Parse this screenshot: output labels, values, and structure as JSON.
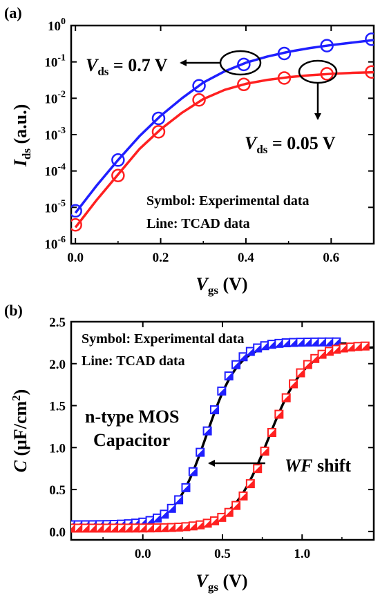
{
  "chart_data": [
    {
      "type": "scatter",
      "panel_label": "(a)",
      "xlabel": {
        "main": "V",
        "sub": "gs",
        "unit": " (V)"
      },
      "ylabel": {
        "main": "I",
        "sub": "ds",
        "unit": " (a.u.)"
      },
      "xlim": [
        -0.01,
        0.7
      ],
      "ylim_log10": [
        -6,
        0
      ],
      "yscale": "log",
      "x_ticks": [
        "0.0",
        "0.2",
        "0.4",
        "0.6"
      ],
      "y_ticks": [
        "10",
        "10",
        "10",
        "10",
        "10",
        "10",
        "10"
      ],
      "y_tick_exponents": [
        "-6",
        "-5",
        "-4",
        "-3",
        "-2",
        "-1",
        "0"
      ],
      "notes": [
        "Symbol: Experimental data",
        "Line: TCAD data"
      ],
      "annotations": [
        {
          "main": "V",
          "sub": "ds",
          "rest": " = 0.7 V"
        },
        {
          "main": "V",
          "sub": "ds",
          "rest": " = 0.05 V"
        }
      ],
      "series": [
        {
          "color": "#1f1fff",
          "symbol": "open-circle",
          "x": [
            0.0,
            0.1,
            0.195,
            0.29,
            0.395,
            0.49,
            0.59,
            0.695
          ],
          "y": [
            8e-06,
            0.0002,
            0.0028,
            0.022,
            0.085,
            0.17,
            0.28,
            0.42
          ],
          "fit_x": [
            0.0,
            0.05,
            0.1,
            0.15,
            0.2,
            0.25,
            0.3,
            0.35,
            0.4,
            0.45,
            0.5,
            0.55,
            0.6,
            0.65,
            0.7
          ],
          "fit_y": [
            7e-06,
            4e-05,
            0.0002,
            0.0009,
            0.0033,
            0.01,
            0.027,
            0.055,
            0.095,
            0.14,
            0.19,
            0.24,
            0.29,
            0.34,
            0.4
          ]
        },
        {
          "color": "#ff2020",
          "symbol": "open-circle",
          "x": [
            0.0,
            0.1,
            0.195,
            0.29,
            0.395,
            0.49,
            0.59,
            0.695
          ],
          "y": [
            3.3e-06,
            7.5e-05,
            0.0012,
            0.009,
            0.024,
            0.036,
            0.047,
            0.053
          ],
          "fit_x": [
            0.0,
            0.05,
            0.1,
            0.15,
            0.2,
            0.25,
            0.3,
            0.35,
            0.4,
            0.45,
            0.5,
            0.55,
            0.6,
            0.65,
            0.7
          ],
          "fit_y": [
            2.8e-06,
            1.6e-05,
            8e-05,
            0.0004,
            0.0014,
            0.004,
            0.0095,
            0.017,
            0.025,
            0.032,
            0.038,
            0.043,
            0.047,
            0.05,
            0.052
          ]
        }
      ]
    },
    {
      "type": "scatter",
      "panel_label": "(b)",
      "xlabel": {
        "main": "V",
        "sub": "gs",
        "unit": " (V)"
      },
      "ylabel": {
        "main": "C",
        "unit_pre": " (μF/cm",
        "sup": "2",
        "unit_post": ")"
      },
      "xlim": [
        -0.45,
        1.45
      ],
      "ylim": [
        -0.1,
        2.5
      ],
      "x_ticks": [
        "0.0",
        "0.5",
        "1.0"
      ],
      "y_ticks": [
        "0.0",
        "0.5",
        "1.0",
        "1.5",
        "2.0",
        "2.5"
      ],
      "notes": [
        "Symbol: Experimental data",
        "Line: TCAD data"
      ],
      "annotations": [
        {
          "text": "n-type MOS"
        },
        {
          "text": "Capacitor"
        },
        {
          "italic": "WF",
          "rest": " shift"
        }
      ],
      "series": [
        {
          "color": "#1f1fff",
          "symbol": "half-filled-square",
          "vth": 0.4,
          "width": 0.095,
          "cmin": 0.08,
          "cmax": 2.26,
          "x_start": -0.45,
          "x_end": 1.22,
          "x_step": 0.045
        },
        {
          "color": "#ff2020",
          "symbol": "half-filled-square",
          "vth": 0.8,
          "width": 0.11,
          "cmin": 0.04,
          "cmax": 2.22,
          "x_start": -0.45,
          "x_end": 1.43,
          "x_step": 0.045
        }
      ],
      "fit_lines": [
        {
          "color": "#000000",
          "vth": 0.4,
          "width": 0.1,
          "cmin": 0.06,
          "cmax": 2.24,
          "x_end": 1.28
        },
        {
          "color": "#000000",
          "vth": 0.79,
          "width": 0.115,
          "cmin": 0.03,
          "cmax": 2.2,
          "x_end": 1.45
        }
      ]
    }
  ]
}
